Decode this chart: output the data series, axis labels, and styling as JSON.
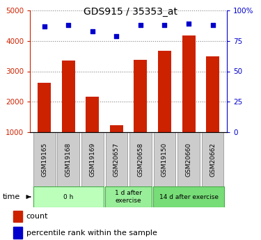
{
  "title": "GDS915 / 35353_at",
  "samples": [
    "GSM19165",
    "GSM19168",
    "GSM19169",
    "GSM20657",
    "GSM20658",
    "GSM19150",
    "GSM20660",
    "GSM20662"
  ],
  "counts": [
    2620,
    3360,
    2160,
    1230,
    3380,
    3680,
    4180,
    3500
  ],
  "percentiles": [
    87,
    88,
    83,
    79,
    88,
    88,
    89,
    88
  ],
  "groups": [
    {
      "label": "0 h",
      "indices": [
        0,
        1,
        2
      ],
      "color": "#bbffbb"
    },
    {
      "label": "1 d after\nexercise",
      "indices": [
        3,
        4
      ],
      "color": "#99ee99"
    },
    {
      "label": "14 d after exercise",
      "indices": [
        5,
        6,
        7
      ],
      "color": "#77dd77"
    }
  ],
  "bar_color": "#cc2200",
  "scatter_color": "#0000cc",
  "ylim_left": [
    1000,
    5000
  ],
  "ylim_right": [
    0,
    100
  ],
  "yticks_left": [
    1000,
    2000,
    3000,
    4000,
    5000
  ],
  "yticks_right": [
    0,
    25,
    50,
    75,
    100
  ],
  "yticklabels_right": [
    "0",
    "25",
    "50",
    "75",
    "100%"
  ],
  "sample_bg_color": "#cccccc",
  "scatter_marker": "s",
  "scatter_size": 25,
  "bar_width": 0.55,
  "fig_width": 3.75,
  "fig_height": 3.45,
  "dpi": 100
}
